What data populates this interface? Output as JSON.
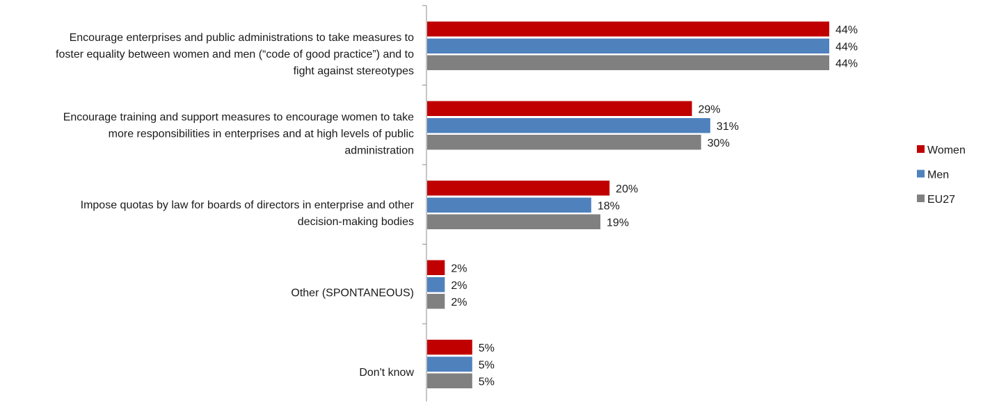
{
  "chart_data": {
    "type": "bar",
    "orientation": "horizontal",
    "categories": [
      [
        "Encourage enterprises and public administrations to take measures to",
        "foster equality between women and men (“code of good practice”) and to",
        "fight against stereotypes"
      ],
      [
        "Encourage training and support measures to encourage women to take",
        "more responsibilities in enterprises and at high levels of public",
        "administration"
      ],
      [
        "Impose quotas by law for boards of directors in enterprise and other",
        "decision-making bodies"
      ],
      [
        "Other (SPONTANEOUS)"
      ],
      [
        "Don't know"
      ]
    ],
    "series": [
      {
        "name": "Women",
        "color": "#C00000",
        "values": [
          44,
          29,
          20,
          2,
          5
        ]
      },
      {
        "name": "Men",
        "color": "#4F81BD",
        "values": [
          44,
          31,
          18,
          2,
          5
        ]
      },
      {
        "name": "EU27",
        "color": "#808080",
        "values": [
          44,
          30,
          19,
          2,
          5
        ]
      }
    ],
    "value_suffix": "%",
    "xlim": [
      0,
      44
    ],
    "grid": false,
    "legend_position": "right"
  }
}
